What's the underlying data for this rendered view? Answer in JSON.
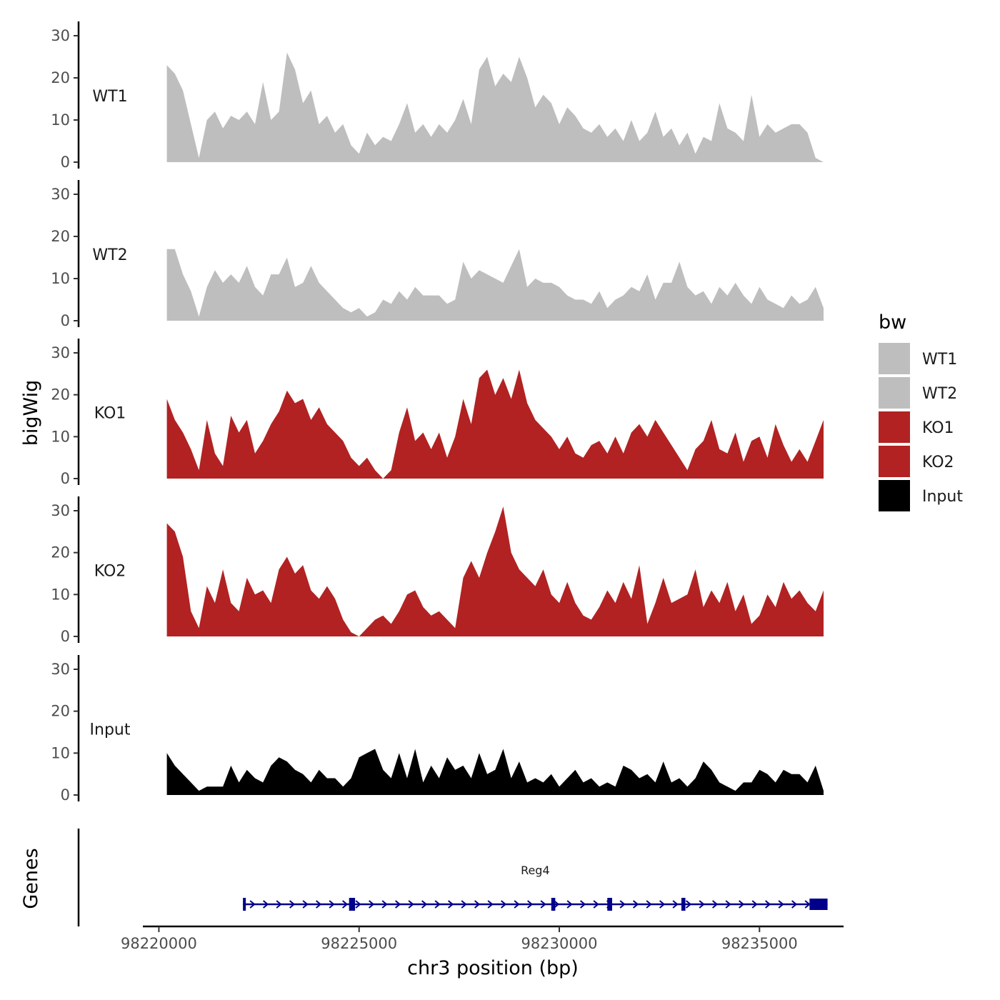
{
  "chart_data": {
    "type": "area",
    "title": "",
    "xlabel": "chr3 position (bp)",
    "ylabel": "bigWig",
    "genes_label": "Genes",
    "xlim": [
      98219600,
      98237100
    ],
    "ylim": [
      0,
      32
    ],
    "x_ticks": [
      98220000,
      98225000,
      98230000,
      98235000
    ],
    "x_tick_labels": [
      "98220000",
      "98225000",
      "98230000",
      "98235000"
    ],
    "y_ticks": [
      0,
      10,
      20,
      30
    ],
    "y_tick_labels": [
      "0",
      "10",
      "20",
      "30"
    ],
    "legend": {
      "title": "bw",
      "position": "right",
      "entries": [
        {
          "label": "WT1",
          "color": "#bebebe"
        },
        {
          "label": "WT2",
          "color": "#bebebe"
        },
        {
          "label": "KO1",
          "color": "#b22222"
        },
        {
          "label": "KO2",
          "color": "#b22222"
        },
        {
          "label": "Input",
          "color": "#000000"
        }
      ]
    },
    "series": [
      {
        "name": "WT1",
        "color": "#bebebe",
        "x": [
          98220200,
          98220400,
          98220600,
          98220800,
          98221000,
          98221200,
          98221400,
          98221600,
          98221800,
          98222000,
          98222200,
          98222400,
          98222600,
          98222800,
          98223000,
          98223200,
          98223400,
          98223600,
          98223800,
          98224000,
          98224200,
          98224400,
          98224600,
          98224800,
          98225000,
          98225200,
          98225400,
          98225600,
          98225800,
          98226000,
          98226200,
          98226400,
          98226600,
          98226800,
          98227000,
          98227200,
          98227400,
          98227600,
          98227800,
          98228000,
          98228200,
          98228400,
          98228600,
          98228800,
          98229000,
          98229200,
          98229400,
          98229600,
          98229800,
          98230000,
          98230200,
          98230400,
          98230600,
          98230800,
          98231000,
          98231200,
          98231400,
          98231600,
          98231800,
          98232000,
          98232200,
          98232400,
          98232600,
          98232800,
          98233000,
          98233200,
          98233400,
          98233600,
          98233800,
          98234000,
          98234200,
          98234400,
          98234600,
          98234800,
          98235000,
          98235200,
          98235400,
          98235600,
          98235800,
          98236000,
          98236200,
          98236400,
          98236600
        ],
        "values": [
          23,
          21,
          17,
          9,
          1,
          10,
          12,
          8,
          11,
          10,
          12,
          9,
          19,
          10,
          12,
          26,
          22,
          14,
          17,
          9,
          11,
          7,
          9,
          4,
          2,
          7,
          4,
          6,
          5,
          9,
          14,
          7,
          9,
          6,
          9,
          7,
          10,
          15,
          9,
          22,
          25,
          18,
          21,
          19,
          25,
          20,
          13,
          16,
          14,
          9,
          13,
          11,
          8,
          7,
          9,
          6,
          8,
          5,
          10,
          5,
          7,
          12,
          6,
          8,
          4,
          7,
          2,
          6,
          5,
          14,
          8,
          7,
          5,
          16,
          6,
          9,
          7,
          8,
          9,
          9,
          7,
          1,
          0
        ]
      },
      {
        "name": "WT2",
        "color": "#bebebe",
        "x": [
          98220200,
          98220400,
          98220600,
          98220800,
          98221000,
          98221200,
          98221400,
          98221600,
          98221800,
          98222000,
          98222200,
          98222400,
          98222600,
          98222800,
          98223000,
          98223200,
          98223400,
          98223600,
          98223800,
          98224000,
          98224200,
          98224400,
          98224600,
          98224800,
          98225000,
          98225200,
          98225400,
          98225600,
          98225800,
          98226000,
          98226200,
          98226400,
          98226600,
          98226800,
          98227000,
          98227200,
          98227400,
          98227600,
          98227800,
          98228000,
          98228200,
          98228400,
          98228600,
          98228800,
          98229000,
          98229200,
          98229400,
          98229600,
          98229800,
          98230000,
          98230200,
          98230400,
          98230600,
          98230800,
          98231000,
          98231200,
          98231400,
          98231600,
          98231800,
          98232000,
          98232200,
          98232400,
          98232600,
          98232800,
          98233000,
          98233200,
          98233400,
          98233600,
          98233800,
          98234000,
          98234200,
          98234400,
          98234600,
          98234800,
          98235000,
          98235200,
          98235400,
          98235600,
          98235800,
          98236000,
          98236200,
          98236400,
          98236600
        ],
        "values": [
          17,
          17,
          11,
          7,
          1,
          8,
          12,
          9,
          11,
          9,
          13,
          8,
          6,
          11,
          11,
          15,
          8,
          9,
          13,
          9,
          7,
          5,
          3,
          2,
          3,
          1,
          2,
          5,
          4,
          7,
          5,
          8,
          6,
          6,
          6,
          4,
          5,
          14,
          10,
          12,
          11,
          10,
          9,
          13,
          17,
          8,
          10,
          9,
          9,
          8,
          6,
          5,
          5,
          4,
          7,
          3,
          5,
          6,
          8,
          7,
          11,
          5,
          9,
          9,
          14,
          8,
          6,
          7,
          4,
          8,
          6,
          9,
          6,
          4,
          8,
          5,
          4,
          3,
          6,
          4,
          5,
          8,
          3
        ]
      },
      {
        "name": "KO1",
        "color": "#b22222",
        "x": [
          98220200,
          98220400,
          98220600,
          98220800,
          98221000,
          98221200,
          98221400,
          98221600,
          98221800,
          98222000,
          98222200,
          98222400,
          98222600,
          98222800,
          98223000,
          98223200,
          98223400,
          98223600,
          98223800,
          98224000,
          98224200,
          98224400,
          98224600,
          98224800,
          98225000,
          98225200,
          98225400,
          98225600,
          98225800,
          98226000,
          98226200,
          98226400,
          98226600,
          98226800,
          98227000,
          98227200,
          98227400,
          98227600,
          98227800,
          98228000,
          98228200,
          98228400,
          98228600,
          98228800,
          98229000,
          98229200,
          98229400,
          98229600,
          98229800,
          98230000,
          98230200,
          98230400,
          98230600,
          98230800,
          98231000,
          98231200,
          98231400,
          98231600,
          98231800,
          98232000,
          98232200,
          98232400,
          98232600,
          98232800,
          98233000,
          98233200,
          98233400,
          98233600,
          98233800,
          98234000,
          98234200,
          98234400,
          98234600,
          98234800,
          98235000,
          98235200,
          98235400,
          98235600,
          98235800,
          98236000,
          98236200,
          98236400,
          98236600
        ],
        "values": [
          19,
          14,
          11,
          7,
          2,
          14,
          6,
          3,
          15,
          11,
          14,
          6,
          9,
          13,
          16,
          21,
          18,
          19,
          14,
          17,
          13,
          11,
          9,
          5,
          3,
          5,
          2,
          0,
          2,
          11,
          17,
          9,
          11,
          7,
          11,
          5,
          10,
          19,
          13,
          24,
          26,
          20,
          24,
          19,
          26,
          18,
          14,
          12,
          10,
          7,
          10,
          6,
          5,
          8,
          9,
          6,
          10,
          6,
          11,
          13,
          10,
          14,
          11,
          8,
          5,
          2,
          7,
          9,
          14,
          7,
          6,
          11,
          4,
          9,
          10,
          5,
          13,
          8,
          4,
          7,
          4,
          9,
          14
        ]
      },
      {
        "name": "KO2",
        "color": "#b22222",
        "x": [
          98220200,
          98220400,
          98220600,
          98220800,
          98221000,
          98221200,
          98221400,
          98221600,
          98221800,
          98222000,
          98222200,
          98222400,
          98222600,
          98222800,
          98223000,
          98223200,
          98223400,
          98223600,
          98223800,
          98224000,
          98224200,
          98224400,
          98224600,
          98224800,
          98225000,
          98225200,
          98225400,
          98225600,
          98225800,
          98226000,
          98226200,
          98226400,
          98226600,
          98226800,
          98227000,
          98227200,
          98227400,
          98227600,
          98227800,
          98228000,
          98228200,
          98228400,
          98228600,
          98228800,
          98229000,
          98229200,
          98229400,
          98229600,
          98229800,
          98230000,
          98230200,
          98230400,
          98230600,
          98230800,
          98231000,
          98231200,
          98231400,
          98231600,
          98231800,
          98232000,
          98232200,
          98232400,
          98232600,
          98232800,
          98233000,
          98233200,
          98233400,
          98233600,
          98233800,
          98234000,
          98234200,
          98234400,
          98234600,
          98234800,
          98235000,
          98235200,
          98235400,
          98235600,
          98235800,
          98236000,
          98236200,
          98236400,
          98236600
        ],
        "values": [
          27,
          25,
          19,
          6,
          2,
          12,
          8,
          16,
          8,
          6,
          14,
          10,
          11,
          8,
          16,
          19,
          15,
          17,
          11,
          9,
          12,
          9,
          4,
          1,
          0,
          2,
          4,
          5,
          3,
          6,
          10,
          11,
          7,
          5,
          6,
          4,
          2,
          14,
          18,
          14,
          20,
          25,
          31,
          20,
          16,
          14,
          12,
          16,
          10,
          8,
          13,
          8,
          5,
          4,
          7,
          11,
          8,
          13,
          9,
          17,
          3,
          8,
          14,
          8,
          9,
          10,
          16,
          7,
          11,
          8,
          13,
          6,
          10,
          3,
          5,
          10,
          7,
          13,
          9,
          11,
          8,
          6,
          11
        ]
      },
      {
        "name": "Input",
        "color": "#000000",
        "x": [
          98220200,
          98220400,
          98220600,
          98220800,
          98221000,
          98221200,
          98221400,
          98221600,
          98221800,
          98222000,
          98222200,
          98222400,
          98222600,
          98222800,
          98223000,
          98223200,
          98223400,
          98223600,
          98223800,
          98224000,
          98224200,
          98224400,
          98224600,
          98224800,
          98225000,
          98225200,
          98225400,
          98225600,
          98225800,
          98226000,
          98226200,
          98226400,
          98226600,
          98226800,
          98227000,
          98227200,
          98227400,
          98227600,
          98227800,
          98228000,
          98228200,
          98228400,
          98228600,
          98228800,
          98229000,
          98229200,
          98229400,
          98229600,
          98229800,
          98230000,
          98230200,
          98230400,
          98230600,
          98230800,
          98231000,
          98231200,
          98231400,
          98231600,
          98231800,
          98232000,
          98232200,
          98232400,
          98232600,
          98232800,
          98233000,
          98233200,
          98233400,
          98233600,
          98233800,
          98234000,
          98234200,
          98234400,
          98234600,
          98234800,
          98235000,
          98235200,
          98235400,
          98235600,
          98235800,
          98236000,
          98236200,
          98236400,
          98236600
        ],
        "values": [
          10,
          7,
          5,
          3,
          1,
          2,
          2,
          2,
          7,
          3,
          6,
          4,
          3,
          7,
          9,
          8,
          6,
          5,
          3,
          6,
          4,
          4,
          2,
          4,
          9,
          10,
          11,
          6,
          4,
          10,
          4,
          11,
          3,
          7,
          4,
          9,
          6,
          7,
          4,
          10,
          5,
          6,
          11,
          4,
          8,
          3,
          4,
          3,
          5,
          2,
          4,
          6,
          3,
          4,
          2,
          3,
          2,
          7,
          6,
          4,
          5,
          3,
          8,
          3,
          4,
          2,
          4,
          8,
          6,
          3,
          2,
          1,
          3,
          3,
          6,
          5,
          3,
          6,
          5,
          5,
          3,
          7,
          1
        ]
      }
    ],
    "gene": {
      "name": "Reg4",
      "color": "#00008b",
      "strand": "+",
      "start": 98222100,
      "end": 98236700,
      "exons": [
        [
          98222100,
          98222150
        ],
        [
          98224750,
          98224900
        ],
        [
          98229800,
          98229900
        ],
        [
          98231200,
          98231320
        ],
        [
          98233050,
          98233150
        ],
        [
          98236250,
          98236700
        ]
      ]
    }
  }
}
